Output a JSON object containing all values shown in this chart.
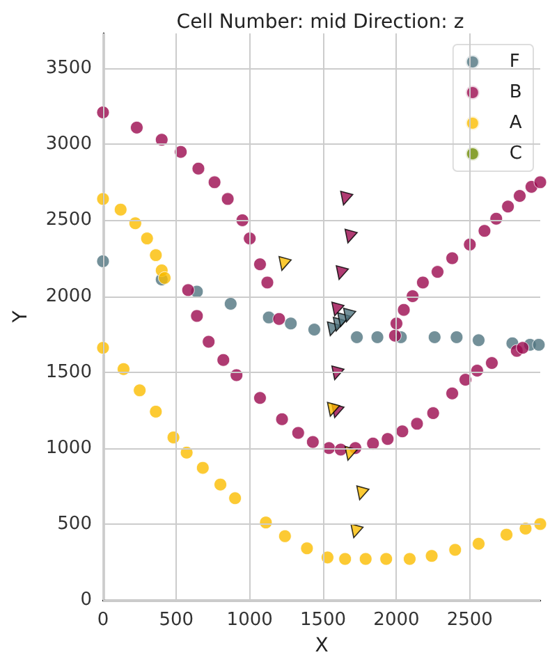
{
  "chart_data": {
    "type": "scatter",
    "title": "Cell Number: mid Direction: z",
    "xlabel": "X",
    "ylabel": "Y",
    "xlim": [
      0,
      2980
    ],
    "ylim": [
      0,
      3730
    ],
    "xticks": [
      0,
      500,
      1000,
      1500,
      2000,
      2500
    ],
    "yticks": [
      0,
      500,
      1000,
      1500,
      2000,
      2500,
      3000,
      3500
    ],
    "grid": true,
    "legend": "top right",
    "marker": "circle",
    "series": [
      {
        "name": "F",
        "color": "#507480",
        "x": [
          0,
          400,
          640,
          870,
          1130,
          1280,
          1440,
          1730,
          1870,
          2030,
          2260,
          2410,
          2560,
          2790,
          2910,
          2970
        ],
        "values": [
          2230,
          2110,
          2030,
          1950,
          1860,
          1820,
          1780,
          1730,
          1730,
          1730,
          1730,
          1730,
          1710,
          1690,
          1680,
          1680
        ]
      },
      {
        "name": "B",
        "color": "#9b0a4f",
        "x": [
          0,
          230,
          400,
          530,
          650,
          760,
          850,
          950,
          1000,
          1070,
          1120,
          580,
          640,
          1200,
          720,
          820,
          910,
          1070,
          1220,
          1330,
          1430,
          1540,
          1620,
          1720,
          1840,
          1940,
          2040,
          2140,
          2250,
          2380,
          2470,
          2550,
          2650,
          2820,
          2860,
          1990,
          2000,
          2050,
          2110,
          2180,
          2280,
          2380,
          2500,
          2600,
          2680,
          2760,
          2840,
          2920,
          2980
        ],
        "values": [
          3210,
          3110,
          3030,
          2950,
          2840,
          2750,
          2640,
          2500,
          2380,
          2210,
          2090,
          2040,
          1870,
          1850,
          1700,
          1580,
          1480,
          1330,
          1190,
          1100,
          1040,
          1000,
          990,
          1000,
          1030,
          1060,
          1110,
          1160,
          1230,
          1360,
          1450,
          1510,
          1560,
          1640,
          1660,
          1740,
          1820,
          1910,
          2000,
          2090,
          2160,
          2250,
          2340,
          2430,
          2510,
          2590,
          2660,
          2720,
          2750
        ]
      },
      {
        "name": "A",
        "color": "#fbbd00",
        "x": [
          0,
          120,
          220,
          300,
          360,
          400,
          420,
          0,
          140,
          250,
          360,
          480,
          570,
          680,
          800,
          900,
          1110,
          1240,
          1390,
          1530,
          1650,
          1790,
          1930,
          2090,
          2240,
          2400,
          2560,
          2750,
          2880,
          2980
        ],
        "values": [
          2640,
          2570,
          2480,
          2380,
          2270,
          2170,
          2120,
          1660,
          1520,
          1380,
          1240,
          1070,
          970,
          870,
          760,
          670,
          510,
          420,
          340,
          280,
          270,
          270,
          270,
          270,
          290,
          330,
          370,
          430,
          470,
          500
        ]
      },
      {
        "name": "C",
        "color": "#6b8a00"
      },
      {
        "color": "#507480",
        "marker": "triangle",
        "x": [
          1560,
          1600,
          1630,
          1670
        ],
        "values": [
          1780,
          1810,
          1840,
          1870
        ]
      },
      {
        "color": "#9b0a4f",
        "marker": "triangle",
        "x": [
          1650,
          1680,
          1620,
          1590,
          1590,
          1590
        ],
        "values": [
          2640,
          2390,
          2150,
          1910,
          1490,
          1240
        ]
      },
      {
        "color": "#fbbd00",
        "marker": "triangle",
        "x": [
          1230,
          1560,
          1680,
          1760,
          1720
        ],
        "values": [
          2210,
          1250,
          960,
          700,
          450
        ]
      }
    ]
  }
}
